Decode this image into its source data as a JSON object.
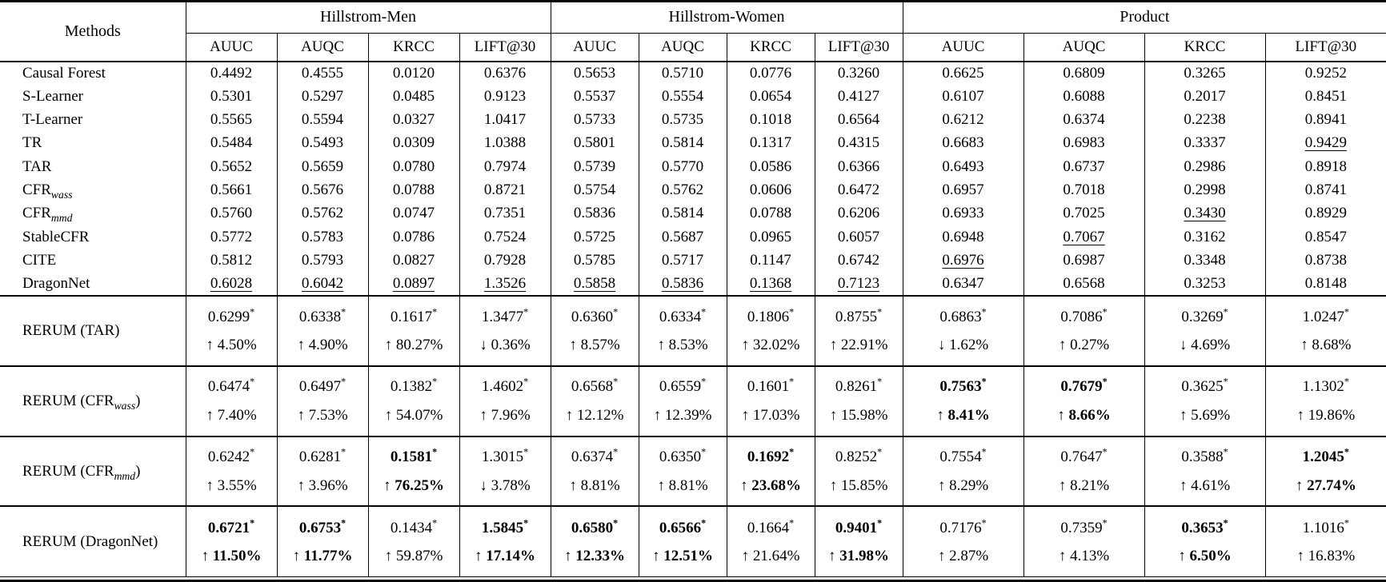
{
  "table": {
    "corner_label": "Methods",
    "significance_marker": "*",
    "arrow_up_glyph": "↑",
    "arrow_down_glyph": "↓",
    "groups": [
      {
        "label": "Hillstrom-Men",
        "metrics": [
          "AUUC",
          "AUQC",
          "KRCC",
          "LIFT@30"
        ]
      },
      {
        "label": "Hillstrom-Women",
        "metrics": [
          "AUUC",
          "AUQC",
          "KRCC",
          "LIFT@30"
        ]
      },
      {
        "label": "Product",
        "metrics": [
          "AUUC",
          "AUQC",
          "KRCC",
          "LIFT@30"
        ]
      }
    ],
    "baseline_rows": [
      {
        "method": {
          "base": "Causal Forest"
        },
        "values": [
          "0.4492",
          "0.4555",
          "0.0120",
          "0.6376",
          "0.5653",
          "0.5710",
          "0.0776",
          "0.3260",
          "0.6625",
          "0.6809",
          "0.3265",
          "0.9252"
        ],
        "underline": []
      },
      {
        "method": {
          "base": "S-Learner"
        },
        "values": [
          "0.5301",
          "0.5297",
          "0.0485",
          "0.9123",
          "0.5537",
          "0.5554",
          "0.0654",
          "0.4127",
          "0.6107",
          "0.6088",
          "0.2017",
          "0.8451"
        ],
        "underline": []
      },
      {
        "method": {
          "base": "T-Learner"
        },
        "values": [
          "0.5565",
          "0.5594",
          "0.0327",
          "1.0417",
          "0.5733",
          "0.5735",
          "0.1018",
          "0.6564",
          "0.6212",
          "0.6374",
          "0.2238",
          "0.8941"
        ],
        "underline": []
      },
      {
        "method": {
          "base": "TR"
        },
        "values": [
          "0.5484",
          "0.5493",
          "0.0309",
          "1.0388",
          "0.5801",
          "0.5814",
          "0.1317",
          "0.4315",
          "0.6683",
          "0.6983",
          "0.3337",
          "0.9429"
        ],
        "underline": [
          11
        ]
      },
      {
        "method": {
          "base": "TAR"
        },
        "values": [
          "0.5652",
          "0.5659",
          "0.0780",
          "0.7974",
          "0.5739",
          "0.5770",
          "0.0586",
          "0.6366",
          "0.6493",
          "0.6737",
          "0.2986",
          "0.8918"
        ],
        "underline": []
      },
      {
        "method": {
          "base": "CFR",
          "sub": "wass"
        },
        "values": [
          "0.5661",
          "0.5676",
          "0.0788",
          "0.8721",
          "0.5754",
          "0.5762",
          "0.0606",
          "0.6472",
          "0.6957",
          "0.7018",
          "0.2998",
          "0.8741"
        ],
        "underline": []
      },
      {
        "method": {
          "base": "CFR",
          "sub": "mmd"
        },
        "values": [
          "0.5760",
          "0.5762",
          "0.0747",
          "0.7351",
          "0.5836",
          "0.5814",
          "0.0788",
          "0.6206",
          "0.6933",
          "0.7025",
          "0.3430",
          "0.8929"
        ],
        "underline": [
          10
        ]
      },
      {
        "method": {
          "base": "StableCFR"
        },
        "values": [
          "0.5772",
          "0.5783",
          "0.0786",
          "0.7524",
          "0.5725",
          "0.5687",
          "0.0965",
          "0.6057",
          "0.6948",
          "0.7067",
          "0.3162",
          "0.8547"
        ],
        "underline": [
          9
        ]
      },
      {
        "method": {
          "base": "CITE"
        },
        "values": [
          "0.5812",
          "0.5793",
          "0.0827",
          "0.7928",
          "0.5785",
          "0.5717",
          "0.1147",
          "0.6742",
          "0.6976",
          "0.6987",
          "0.3348",
          "0.8738"
        ],
        "underline": [
          8
        ]
      },
      {
        "method": {
          "base": "DragonNet"
        },
        "values": [
          "0.6028",
          "0.6042",
          "0.0897",
          "1.3526",
          "0.5858",
          "0.5836",
          "0.1368",
          "0.7123",
          "0.6347",
          "0.6568",
          "0.3253",
          "0.8148"
        ],
        "underline": [
          0,
          1,
          2,
          3,
          4,
          5,
          6,
          7
        ]
      }
    ],
    "rerum_rows": [
      {
        "method": {
          "base": "RERUM (TAR)"
        },
        "values": [
          "0.6299",
          "0.6338",
          "0.1617",
          "1.3477",
          "0.6360",
          "0.6334",
          "0.1806",
          "0.8755",
          "0.6863",
          "0.7086",
          "0.3269",
          "1.0247"
        ],
        "arrows": [
          "up",
          "up",
          "up",
          "down",
          "up",
          "up",
          "up",
          "up",
          "down",
          "up",
          "down",
          "up"
        ],
        "deltas": [
          "4.50%",
          "4.90%",
          "80.27%",
          "0.36%",
          "8.57%",
          "8.53%",
          "32.02%",
          "22.91%",
          "1.62%",
          "0.27%",
          "4.69%",
          "8.68%"
        ],
        "bold": []
      },
      {
        "method": {
          "base": "RERUM (CFR",
          "sub": "wass",
          "suffix": ")"
        },
        "values": [
          "0.6474",
          "0.6497",
          "0.1382",
          "1.4602",
          "0.6568",
          "0.6559",
          "0.1601",
          "0.8261",
          "0.7563",
          "0.7679",
          "0.3625",
          "1.1302"
        ],
        "arrows": [
          "up",
          "up",
          "up",
          "up",
          "up",
          "up",
          "up",
          "up",
          "up",
          "up",
          "up",
          "up"
        ],
        "deltas": [
          "7.40%",
          "7.53%",
          "54.07%",
          "7.96%",
          "12.12%",
          "12.39%",
          "17.03%",
          "15.98%",
          "8.41%",
          "8.66%",
          "5.69%",
          "19.86%"
        ],
        "bold": [
          8,
          9
        ]
      },
      {
        "method": {
          "base": "RERUM (CFR",
          "sub": "mmd",
          "suffix": ")"
        },
        "values": [
          "0.6242",
          "0.6281",
          "0.1581",
          "1.3015",
          "0.6374",
          "0.6350",
          "0.1692",
          "0.8252",
          "0.7554",
          "0.7647",
          "0.3588",
          "1.2045"
        ],
        "arrows": [
          "up",
          "up",
          "up",
          "down",
          "up",
          "up",
          "up",
          "up",
          "up",
          "up",
          "up",
          "up"
        ],
        "deltas": [
          "3.55%",
          "3.96%",
          "76.25%",
          "3.78%",
          "8.81%",
          "8.81%",
          "23.68%",
          "15.85%",
          "8.29%",
          "8.21%",
          "4.61%",
          "27.74%"
        ],
        "bold": [
          2,
          6,
          11
        ]
      },
      {
        "method": {
          "base": "RERUM (DragonNet)"
        },
        "values": [
          "0.6721",
          "0.6753",
          "0.1434",
          "1.5845",
          "0.6580",
          "0.6566",
          "0.1664",
          "0.9401",
          "0.7176",
          "0.7359",
          "0.3653",
          "1.1016"
        ],
        "arrows": [
          "up",
          "up",
          "up",
          "up",
          "up",
          "up",
          "up",
          "up",
          "up",
          "up",
          "up",
          "up"
        ],
        "deltas": [
          "11.50%",
          "11.77%",
          "59.87%",
          "17.14%",
          "12.33%",
          "12.51%",
          "21.64%",
          "31.98%",
          "2.87%",
          "4.13%",
          "6.50%",
          "16.83%"
        ],
        "bold": [
          0,
          1,
          3,
          4,
          5,
          7,
          10
        ]
      }
    ]
  }
}
